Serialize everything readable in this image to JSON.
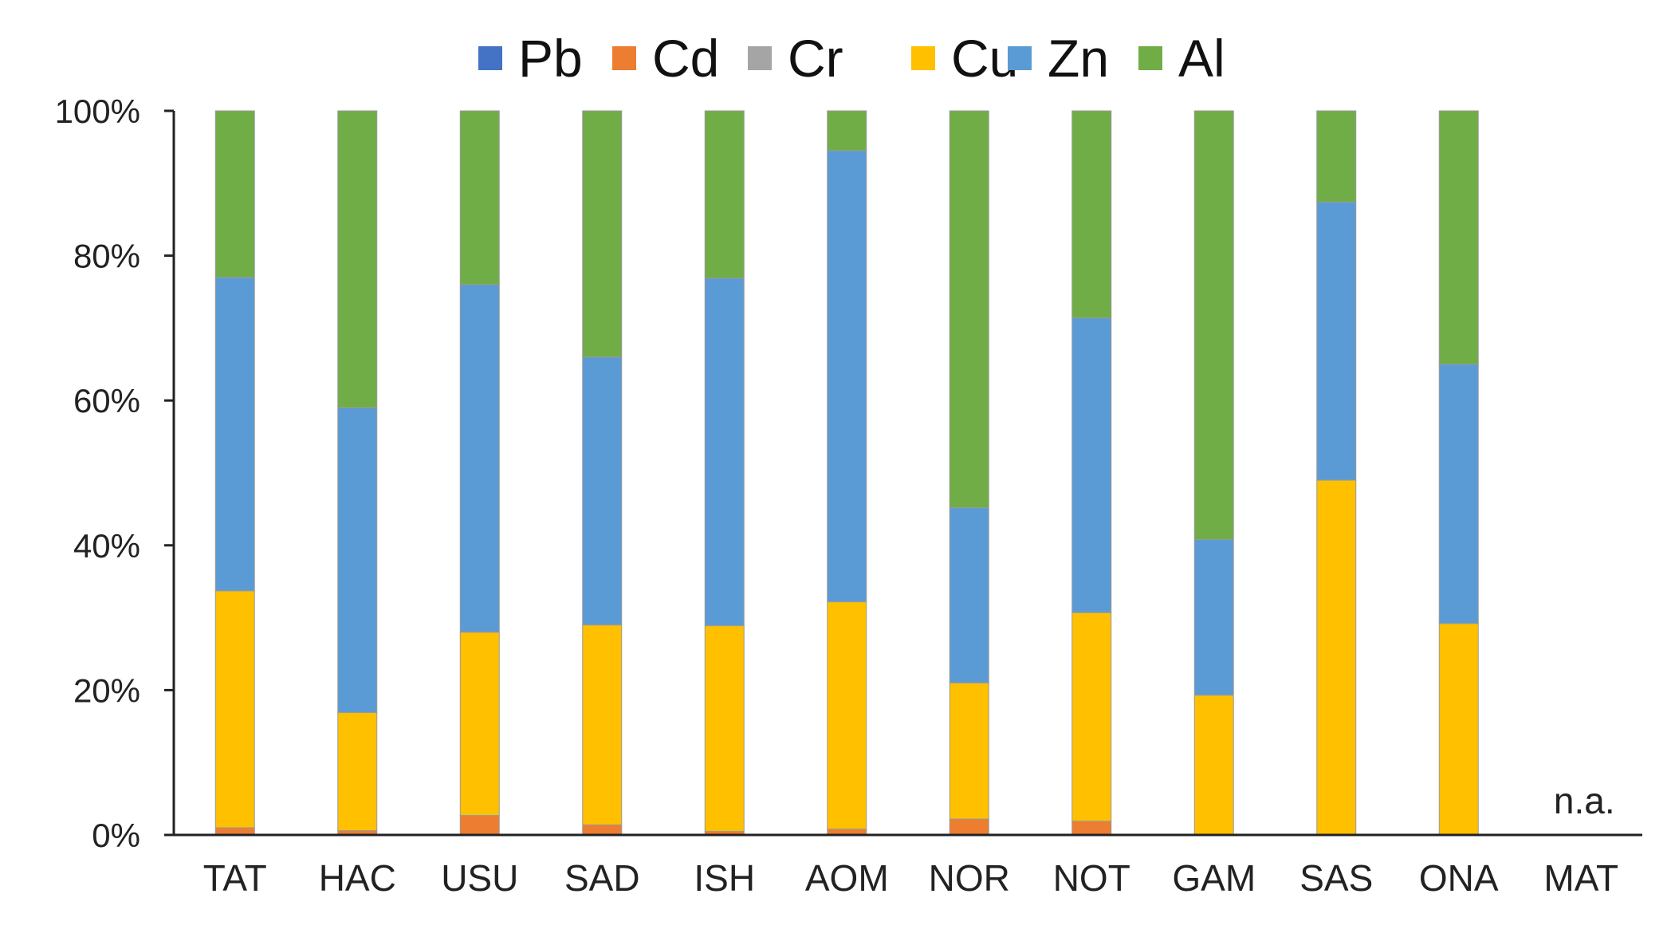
{
  "chart_data": {
    "type": "bar",
    "stacked": true,
    "categories": [
      "TAT",
      "HAC",
      "USU",
      "SAD",
      "ISH",
      "AOM",
      "NOR",
      "NOT",
      "GAM",
      "SAS",
      "ONA",
      "MAT"
    ],
    "series": [
      {
        "name": "Pb",
        "color": "#4472C4",
        "values": [
          0.0,
          0.0,
          0.0,
          0.0,
          0.0,
          0.0,
          0.0,
          0.0,
          0.0,
          0.0,
          0.0,
          null
        ]
      },
      {
        "name": "Cd",
        "color": "#ED7D31",
        "values": [
          1.0,
          0.6,
          2.7,
          1.4,
          0.5,
          0.8,
          2.2,
          1.9,
          0.0,
          0.0,
          0.0,
          null
        ]
      },
      {
        "name": "Cr",
        "color": "#A5A5A5",
        "values": [
          0.0,
          0.0,
          0.0,
          0.0,
          0.0,
          0.0,
          0.0,
          0.0,
          0.0,
          0.0,
          0.0,
          null
        ]
      },
      {
        "name": "Cu",
        "color": "#FFC000",
        "values": [
          32.7,
          16.3,
          25.3,
          27.6,
          28.4,
          31.4,
          18.8,
          28.8,
          19.3,
          49.0,
          29.2,
          null
        ]
      },
      {
        "name": "Zn",
        "color": "#5B9BD5",
        "values": [
          43.3,
          42.1,
          48.0,
          37.0,
          48.0,
          62.3,
          24.2,
          40.7,
          21.5,
          38.4,
          35.8,
          null
        ]
      },
      {
        "name": "Al",
        "color": "#70AD47",
        "values": [
          23.0,
          41.0,
          24.0,
          34.0,
          23.1,
          5.5,
          54.8,
          28.6,
          59.2,
          12.6,
          35.0,
          null
        ]
      }
    ],
    "ylim": [
      0,
      100
    ],
    "yticks": [
      "0%",
      "20%",
      "40%",
      "60%",
      "80%",
      "100%"
    ],
    "legend": {
      "position": "top",
      "entries": [
        "Pb",
        "Cd",
        "Cr",
        "Cu",
        "Zn",
        "Al"
      ]
    },
    "annotations": [
      {
        "category": "MAT",
        "text": "n.a."
      }
    ],
    "title": "",
    "xlabel": "",
    "ylabel": ""
  }
}
